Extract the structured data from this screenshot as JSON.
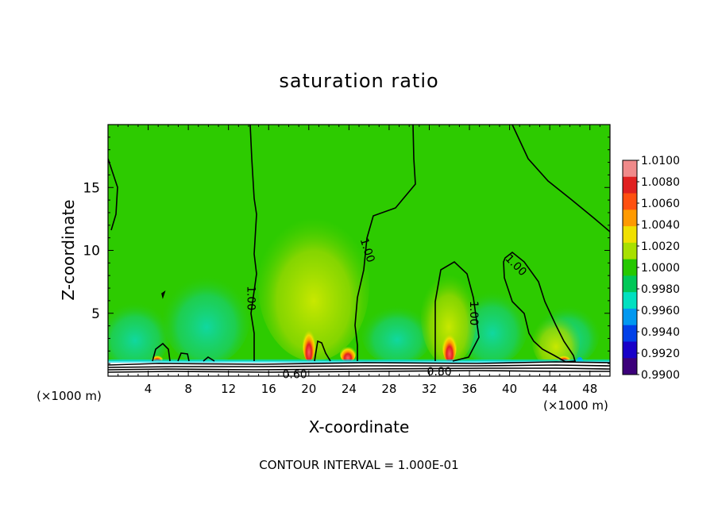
{
  "title": "saturation ratio",
  "footnote": "CONTOUR INTERVAL = 1.000E-01",
  "chart_data": {
    "type": "heatmap",
    "title": "saturation ratio",
    "xlabel": "X-coordinate",
    "ylabel": "Z-coordinate",
    "x_unit_left": "(×1000 m)",
    "x_unit_right": "(×1000 m)",
    "xlim": [
      0,
      50
    ],
    "ylim": [
      0,
      20
    ],
    "x_ticks": [
      4,
      8,
      12,
      16,
      20,
      24,
      28,
      32,
      36,
      40,
      44,
      48
    ],
    "x_tick_labels": [
      "4",
      "8",
      "12",
      "16",
      "20",
      "24",
      "28",
      "32",
      "36",
      "40",
      "44",
      "48"
    ],
    "y_ticks": [
      5,
      10,
      15
    ],
    "y_tick_labels": [
      "5",
      "10",
      "15"
    ],
    "colorbar": {
      "labels": [
        "1.0100",
        "1.0080",
        "1.0060",
        "1.0040",
        "1.0020",
        "1.0000",
        "0.9980",
        "0.9960",
        "0.9940",
        "0.9920",
        "0.9900"
      ],
      "colors": [
        "#f08a8a",
        "#e02020",
        "#ff5010",
        "#ff9a00",
        "#f0e000",
        "#a8e000",
        "#26c800",
        "#00c858",
        "#00e0c0",
        "#0098f0",
        "#0040e8",
        "#1800c8",
        "#3c007a"
      ]
    },
    "background_value": 1.0,
    "background_color": "#2dcb00",
    "contour_labels": [
      {
        "text": "1.00",
        "x": 14.2,
        "y": 6.2,
        "angle": 90
      },
      {
        "text": "1.00",
        "x": 25.8,
        "y": 10.0,
        "angle": 72
      },
      {
        "text": "1.00",
        "x": 36.4,
        "y": 5.0,
        "angle": 90
      },
      {
        "text": "1.00",
        "x": 40.6,
        "y": 8.8,
        "angle": 45
      },
      {
        "text": "0.60",
        "x": 18.6,
        "y": 0.1,
        "angle": 0
      },
      {
        "text": "0.80",
        "x": 33.0,
        "y": 0.3,
        "angle": 0
      }
    ]
  }
}
